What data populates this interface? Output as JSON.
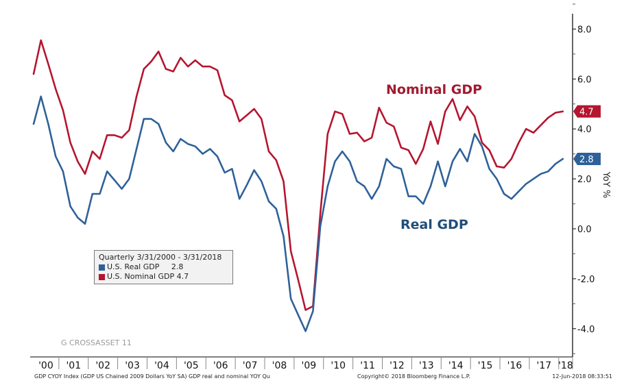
{
  "chart_data": {
    "type": "line",
    "title": "",
    "xlabel": "",
    "ylabel": "YoY %",
    "ylim": [
      -5.2,
      8.6
    ],
    "yticks": [
      -4.0,
      -2.0,
      0.0,
      2.0,
      4.0,
      6.0,
      8.0
    ],
    "ytick_labels": [
      "-4.0",
      "-2.0",
      "0.0",
      "2.0",
      "4.0",
      "6.0",
      "8.0"
    ],
    "y_axis_side": "right",
    "grid": false,
    "x_start": "Q1 2000",
    "x_end": "Q1 2018",
    "frequency": "quarterly",
    "year_tick_labels": [
      "'00",
      "'01",
      "'02",
      "'03",
      "'04",
      "'05",
      "'06",
      "'07",
      "'08",
      "'09",
      "'10",
      "'11",
      "'12",
      "'13",
      "'14",
      "'15",
      "'16",
      "'17",
      "'18"
    ],
    "series": [
      {
        "name": "U.S. Nominal GDP",
        "color": "#b5152f",
        "last_value": "4.7",
        "annotation": "Nominal GDP",
        "values": [
          6.2,
          7.55,
          6.6,
          5.6,
          4.75,
          3.45,
          2.7,
          2.2,
          3.1,
          2.8,
          3.75,
          3.75,
          3.65,
          3.95,
          5.3,
          6.4,
          6.7,
          7.1,
          6.4,
          6.3,
          6.85,
          6.5,
          6.75,
          6.5,
          6.5,
          6.35,
          5.35,
          5.15,
          4.3,
          4.55,
          4.8,
          4.4,
          3.1,
          2.75,
          1.9,
          -0.9,
          -2.05,
          -3.25,
          -3.1,
          0.6,
          3.8,
          4.7,
          4.6,
          3.8,
          3.85,
          3.5,
          3.65,
          4.85,
          4.25,
          4.1,
          3.25,
          3.15,
          2.6,
          3.2,
          4.3,
          3.4,
          4.7,
          5.2,
          4.35,
          4.9,
          4.5,
          3.45,
          3.15,
          2.5,
          2.45,
          2.8,
          3.45,
          4.0,
          3.85,
          4.15,
          4.45,
          4.65,
          4.7
        ]
      },
      {
        "name": "U.S. Real GDP",
        "color": "#2e6199",
        "last_value": "2.8",
        "annotation": "Real GDP",
        "values": [
          4.2,
          5.3,
          4.2,
          2.9,
          2.3,
          0.9,
          0.45,
          0.2,
          1.4,
          1.4,
          2.3,
          1.95,
          1.6,
          2.0,
          3.2,
          4.4,
          4.4,
          4.2,
          3.45,
          3.1,
          3.6,
          3.4,
          3.3,
          3.0,
          3.2,
          2.9,
          2.25,
          2.4,
          1.2,
          1.75,
          2.35,
          1.9,
          1.1,
          0.8,
          -0.3,
          -2.8,
          -3.45,
          -4.1,
          -3.3,
          0.1,
          1.7,
          2.7,
          3.1,
          2.7,
          1.9,
          1.7,
          1.2,
          1.7,
          2.8,
          2.5,
          2.4,
          1.3,
          1.3,
          1.0,
          1.7,
          2.7,
          1.7,
          2.7,
          3.2,
          2.7,
          3.8,
          3.3,
          2.4,
          2.0,
          1.4,
          1.2,
          1.5,
          1.8,
          2.0,
          2.2,
          2.3,
          2.6,
          2.8
        ]
      }
    ],
    "legend": {
      "placement": "lower-left",
      "header": "Quarterly 3/31/2000 - 3/31/2018",
      "entries": [
        {
          "label": "U.S. Real GDP",
          "value": "2.8",
          "color": "#2e6199"
        },
        {
          "label": "U.S. Nominal GDP",
          "value": "4.7",
          "color": "#b5152f"
        }
      ]
    }
  },
  "footer": {
    "source": "GDP CYOY Index (GDP US Chained 2009 Dollars YoY SA) GDP real and nominal YOY  Qu",
    "copyright": "Copyright© 2018 Bloomberg Finance L.P.",
    "timestamp": "12-Jun-2018 08:33:51"
  },
  "watermark": "G CROSSASSET 11"
}
